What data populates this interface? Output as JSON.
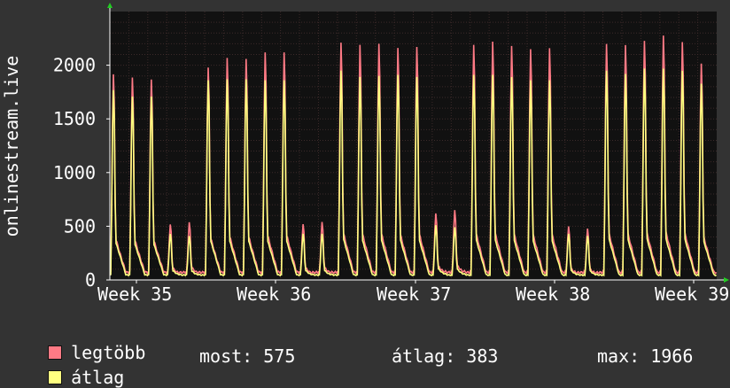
{
  "chart_data": {
    "type": "line",
    "ylabel": "onlinestream.live",
    "ylim": [
      0,
      2500
    ],
    "yticks": [
      0,
      500,
      1000,
      1500,
      2000
    ],
    "x_ticks": [
      "Week 35",
      "Week 36",
      "Week 37",
      "Week 38",
      "Week 39"
    ],
    "grid": true,
    "series": [
      {
        "name": "legtöbb",
        "color": "#ff7a85",
        "daily_peaks": [
          1900,
          1870,
          1850,
          500,
          520,
          1960,
          2050,
          2040,
          2100,
          2100,
          500,
          520,
          2190,
          2170,
          2180,
          2140,
          2150,
          600,
          630,
          2170,
          2200,
          2160,
          2130,
          2140,
          480,
          460,
          2180,
          2170,
          2210,
          2260,
          2200,
          2000
        ]
      },
      {
        "name": "átlag",
        "color": "#ffff80",
        "daily_peaks": [
          1760,
          1700,
          1700,
          420,
          400,
          1850,
          1860,
          1860,
          1850,
          1850,
          420,
          420,
          1940,
          1880,
          1890,
          1900,
          1880,
          500,
          480,
          1900,
          1900,
          1880,
          1850,
          1850,
          420,
          400,
          1940,
          1910,
          1960,
          1960,
          1940,
          1820
        ]
      }
    ]
  },
  "legend": {
    "max_label": "legtöbb",
    "avg_label": "átlag",
    "max_color": "#ff7a85",
    "avg_color": "#ffff80"
  },
  "stats": {
    "now": "most: 575",
    "avg": "átlag: 383",
    "max": "max: 1966"
  }
}
